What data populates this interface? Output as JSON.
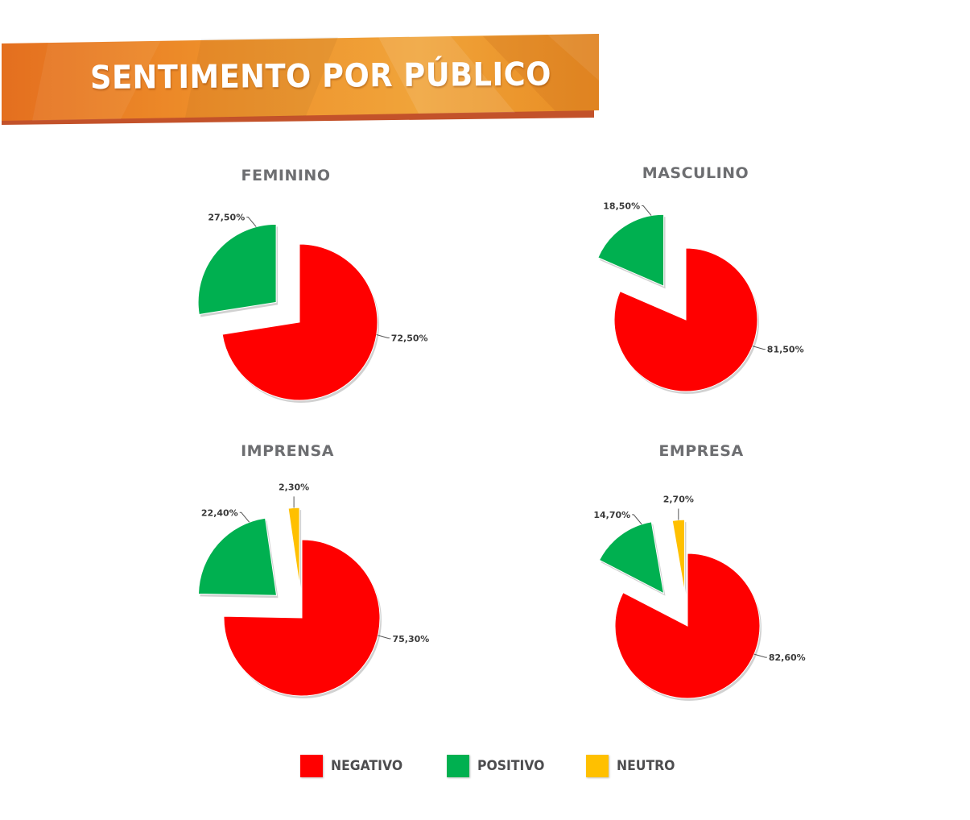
{
  "banner": {
    "title": "SENTIMENTO POR PÚBLICO"
  },
  "colors": {
    "negativo": "#ff0000",
    "positivo": "#00b050",
    "neutro": "#ffc000",
    "banner": "#e8821e",
    "title_gray": "#6d6e71"
  },
  "legend": [
    {
      "label": "NEGATIVO",
      "color": "#ff0000"
    },
    {
      "label": "POSITIVO",
      "color": "#00b050"
    },
    {
      "label": "NEUTRO",
      "color": "#ffc000"
    }
  ],
  "chart_data": [
    {
      "type": "pie",
      "title": "FEMININO",
      "categories": [
        "NEGATIVO",
        "POSITIVO"
      ],
      "values": [
        72.5,
        27.5
      ],
      "labels": [
        "72,50%",
        "27,50%"
      ]
    },
    {
      "type": "pie",
      "title": "MASCULINO",
      "categories": [
        "NEGATIVO",
        "POSITIVO"
      ],
      "values": [
        81.5,
        18.5
      ],
      "labels": [
        "81,50%",
        "18,50%"
      ]
    },
    {
      "type": "pie",
      "title": "IMPRENSA",
      "categories": [
        "NEGATIVO",
        "POSITIVO",
        "NEUTRO"
      ],
      "values": [
        75.3,
        22.4,
        2.3
      ],
      "labels": [
        "75,30%",
        "22,40%",
        "2,30%"
      ]
    },
    {
      "type": "pie",
      "title": "EMPRESA",
      "categories": [
        "NEGATIVO",
        "POSITIVO",
        "NEUTRO"
      ],
      "values": [
        82.6,
        14.7,
        2.7
      ],
      "labels": [
        "82,60%",
        "14,70%",
        "2,70%"
      ]
    }
  ]
}
